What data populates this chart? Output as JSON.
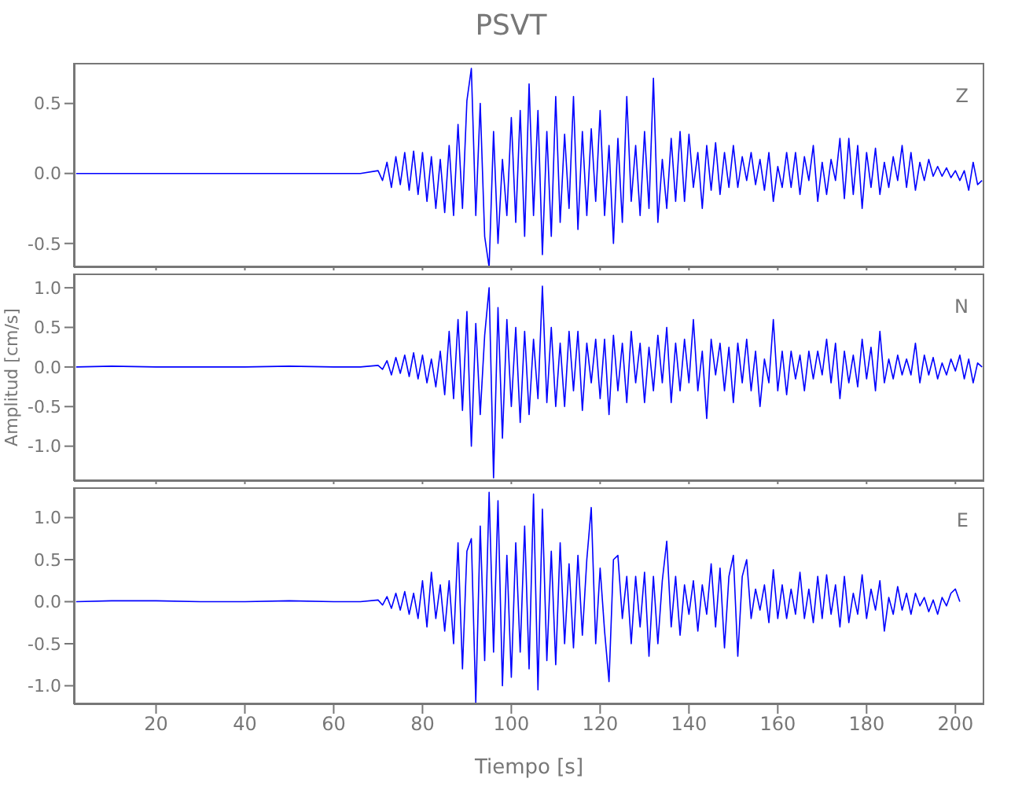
{
  "chart_data": [
    {
      "type": "line",
      "title": "PSVT",
      "annotations": [
        "Z"
      ],
      "tick_labels": "y",
      "xlim": [
        1.5,
        206.5
      ],
      "ylim": [
        -0.67,
        0.79
      ],
      "xticks": [
        20,
        40,
        60,
        80,
        100,
        120,
        140,
        160,
        180,
        200
      ],
      "yticks": [
        {
          "value": -0.5,
          "label": "-0.5"
        },
        {
          "value": 0,
          "label": "0.0"
        },
        {
          "value": 0.5,
          "label": "0.5"
        }
      ],
      "x": [
        2,
        10,
        20,
        30,
        40,
        50,
        60,
        66,
        70,
        71,
        72,
        73,
        74,
        75,
        76,
        77,
        78,
        79,
        80,
        81,
        82,
        83,
        84,
        85,
        86,
        87,
        88,
        89,
        90,
        91,
        92,
        93,
        94,
        95,
        96,
        97,
        98,
        99,
        100,
        101,
        102,
        103,
        104,
        105,
        106,
        107,
        108,
        109,
        110,
        111,
        112,
        113,
        114,
        115,
        116,
        117,
        118,
        119,
        120,
        121,
        122,
        123,
        124,
        125,
        126,
        127,
        128,
        129,
        130,
        131,
        132,
        133,
        134,
        135,
        136,
        137,
        138,
        139,
        140,
        141,
        142,
        143,
        144,
        145,
        146,
        147,
        148,
        149,
        150,
        151,
        152,
        153,
        154,
        155,
        156,
        157,
        158,
        159,
        160,
        161,
        162,
        163,
        164,
        165,
        166,
        167,
        168,
        169,
        170,
        171,
        172,
        173,
        174,
        175,
        176,
        177,
        178,
        179,
        180,
        181,
        182,
        183,
        184,
        185,
        186,
        187,
        188,
        189,
        190,
        191,
        192,
        193,
        194,
        195,
        196,
        197,
        198,
        199,
        200,
        201,
        202,
        203,
        204,
        205,
        206
      ],
      "series": [
        {
          "color": "#0000ff",
          "values": [
            0,
            0,
            0,
            0,
            0,
            0,
            0,
            0,
            0.02,
            -0.05,
            0.08,
            -0.1,
            0.12,
            -0.08,
            0.15,
            -0.12,
            0.16,
            -0.15,
            0.15,
            -0.2,
            0.12,
            -0.25,
            0.1,
            -0.28,
            0.2,
            -0.3,
            0.35,
            -0.25,
            0.52,
            0.75,
            -0.3,
            0.5,
            -0.45,
            -0.67,
            0.3,
            -0.5,
            0.1,
            -0.3,
            0.4,
            -0.35,
            0.45,
            -0.45,
            0.64,
            -0.3,
            0.45,
            -0.58,
            0.3,
            -0.45,
            0.55,
            -0.35,
            0.28,
            -0.25,
            0.55,
            -0.4,
            0.3,
            -0.3,
            0.32,
            -0.2,
            0.45,
            -0.3,
            0.2,
            -0.5,
            0.25,
            -0.35,
            0.55,
            -0.2,
            0.2,
            -0.3,
            0.3,
            -0.25,
            0.68,
            -0.35,
            0.1,
            -0.25,
            0.25,
            -0.2,
            0.3,
            -0.2,
            0.28,
            -0.1,
            0.15,
            -0.25,
            0.2,
            -0.12,
            0.22,
            -0.15,
            0.15,
            -0.1,
            0.2,
            -0.1,
            0.12,
            -0.05,
            0.15,
            -0.08,
            0.1,
            -0.12,
            0.15,
            -0.2,
            0.05,
            -0.1,
            0.15,
            -0.1,
            0.15,
            -0.15,
            0.12,
            -0.05,
            0.2,
            -0.2,
            0.08,
            -0.15,
            0.1,
            -0.05,
            0.25,
            -0.18,
            0.25,
            -0.15,
            0.2,
            -0.25,
            0.15,
            -0.1,
            0.18,
            -0.15,
            0.08,
            -0.1,
            0.12,
            -0.05,
            0.2,
            -0.1,
            0.15,
            -0.12,
            0.08,
            -0.05,
            0.1,
            -0.02,
            0.05,
            -0.02,
            0.04,
            -0.03,
            0.02,
            -0.05,
            0.02,
            -0.12,
            0.08,
            -0.08,
            -0.05
          ]
        }
      ]
    },
    {
      "type": "line",
      "ylabel": "Amplitud [cm/s]",
      "annotations": [
        "N"
      ],
      "tick_labels": "y",
      "xlim": [
        1.5,
        206.5
      ],
      "ylim": [
        -1.44,
        1.18
      ],
      "xticks": [
        20,
        40,
        60,
        80,
        100,
        120,
        140,
        160,
        180,
        200
      ],
      "yticks": [
        {
          "value": -1,
          "label": "-1.0"
        },
        {
          "value": -0.5,
          "label": "-0.5"
        },
        {
          "value": 0,
          "label": "0.0"
        },
        {
          "value": 0.5,
          "label": "0.5"
        },
        {
          "value": 1,
          "label": "1.0"
        }
      ],
      "x": [
        2,
        10,
        20,
        30,
        40,
        50,
        60,
        66,
        70,
        71,
        72,
        73,
        74,
        75,
        76,
        77,
        78,
        79,
        80,
        81,
        82,
        83,
        84,
        85,
        86,
        87,
        88,
        89,
        90,
        91,
        92,
        93,
        94,
        95,
        96,
        97,
        98,
        99,
        100,
        101,
        102,
        103,
        104,
        105,
        106,
        107,
        108,
        109,
        110,
        111,
        112,
        113,
        114,
        115,
        116,
        117,
        118,
        119,
        120,
        121,
        122,
        123,
        124,
        125,
        126,
        127,
        128,
        129,
        130,
        131,
        132,
        133,
        134,
        135,
        136,
        137,
        138,
        139,
        140,
        141,
        142,
        143,
        144,
        145,
        146,
        147,
        148,
        149,
        150,
        151,
        152,
        153,
        154,
        155,
        156,
        157,
        158,
        159,
        160,
        161,
        162,
        163,
        164,
        165,
        166,
        167,
        168,
        169,
        170,
        171,
        172,
        173,
        174,
        175,
        176,
        177,
        178,
        179,
        180,
        181,
        182,
        183,
        184,
        185,
        186,
        187,
        188,
        189,
        190,
        191,
        192,
        193,
        194,
        195,
        196,
        197,
        198,
        199,
        200,
        201,
        202,
        203,
        204,
        205,
        206
      ],
      "series": [
        {
          "color": "#0000ff",
          "values": [
            0,
            0.01,
            0,
            0,
            0,
            0.01,
            0,
            0,
            0.02,
            -0.03,
            0.08,
            -0.1,
            0.12,
            -0.08,
            0.15,
            -0.12,
            0.18,
            -0.15,
            0.15,
            -0.2,
            0.1,
            -0.25,
            0.2,
            -0.35,
            0.45,
            -0.4,
            0.6,
            -0.55,
            0.7,
            -1.0,
            0.55,
            -0.6,
            0.4,
            1.0,
            -1.4,
            0.75,
            -0.9,
            0.6,
            -0.5,
            0.5,
            -0.7,
            0.45,
            -0.6,
            0.35,
            -0.4,
            1.02,
            -0.45,
            0.5,
            -0.5,
            0.3,
            -0.5,
            0.45,
            -0.3,
            0.45,
            -0.55,
            0.3,
            -0.2,
            0.35,
            -0.4,
            0.35,
            -0.6,
            0.4,
            -0.3,
            0.3,
            -0.45,
            0.45,
            -0.2,
            0.3,
            -0.45,
            0.25,
            -0.3,
            0.4,
            -0.2,
            0.5,
            -0.45,
            0.3,
            -0.3,
            0.35,
            -0.2,
            0.6,
            -0.3,
            0.2,
            -0.65,
            0.35,
            -0.1,
            0.3,
            -0.3,
            0.25,
            -0.45,
            0.3,
            -0.2,
            0.35,
            -0.3,
            0.2,
            -0.5,
            0.1,
            -0.2,
            0.6,
            -0.3,
            0.2,
            -0.35,
            0.2,
            -0.15,
            0.15,
            -0.3,
            0.2,
            -0.15,
            0.2,
            -0.1,
            0.35,
            -0.2,
            0.3,
            -0.4,
            0.2,
            -0.2,
            0.15,
            -0.25,
            0.35,
            -0.15,
            0.25,
            -0.3,
            0.45,
            -0.2,
            0.1,
            -0.15,
            0.15,
            -0.1,
            0.1,
            -0.1,
            0.3,
            -0.2,
            0.15,
            -0.1,
            0.12,
            -0.15,
            0.05,
            -0.1,
            0.1,
            -0.05,
            0.15,
            -0.15,
            0.1,
            -0.2,
            0.05,
            0
          ]
        }
      ]
    },
    {
      "type": "line",
      "xlabel": "Tiempo [s]",
      "annotations": [
        "E"
      ],
      "xlim": [
        1.5,
        206.5
      ],
      "ylim": [
        -1.22,
        1.36
      ],
      "xticks": [
        20,
        40,
        60,
        80,
        100,
        120,
        140,
        160,
        180,
        200
      ],
      "yticks": [
        {
          "value": -1,
          "label": "-1.0"
        },
        {
          "value": -0.5,
          "label": "-0.5"
        },
        {
          "value": 0,
          "label": "0.0"
        },
        {
          "value": 0.5,
          "label": "0.5"
        },
        {
          "value": 1,
          "label": "1.0"
        }
      ],
      "x": [
        2,
        10,
        20,
        30,
        40,
        50,
        60,
        66,
        70,
        71,
        72,
        73,
        74,
        75,
        76,
        77,
        78,
        79,
        80,
        81,
        82,
        83,
        84,
        85,
        86,
        87,
        88,
        89,
        90,
        91,
        92,
        93,
        94,
        95,
        96,
        97,
        98,
        99,
        100,
        101,
        102,
        103,
        104,
        105,
        106,
        107,
        108,
        109,
        110,
        111,
        112,
        113,
        114,
        115,
        116,
        117,
        118,
        119,
        120,
        121,
        122,
        123,
        124,
        125,
        126,
        127,
        128,
        129,
        130,
        131,
        132,
        133,
        134,
        135,
        136,
        137,
        138,
        139,
        140,
        141,
        142,
        143,
        144,
        145,
        146,
        147,
        148,
        149,
        150,
        151,
        152,
        153,
        154,
        155,
        156,
        157,
        158,
        159,
        160,
        161,
        162,
        163,
        164,
        165,
        166,
        167,
        168,
        169,
        170,
        171,
        172,
        173,
        174,
        175,
        176,
        177,
        178,
        179,
        180,
        181,
        182,
        183,
        184,
        185,
        186,
        187,
        188,
        189,
        190,
        191,
        192,
        193,
        194,
        195,
        196,
        197,
        198,
        199,
        200,
        201
      ],
      "series": [
        {
          "color": "#0000ff",
          "values": [
            0,
            0.01,
            0.01,
            0,
            0,
            0.01,
            0,
            0,
            0.02,
            -0.04,
            0.06,
            -0.08,
            0.1,
            -0.1,
            0.12,
            -0.15,
            0.1,
            -0.2,
            0.25,
            -0.3,
            0.35,
            -0.2,
            0.2,
            -0.35,
            0.25,
            -0.5,
            0.7,
            -0.8,
            0.6,
            0.75,
            -1.2,
            0.9,
            -0.7,
            1.3,
            -0.6,
            1.2,
            -1.0,
            0.55,
            -0.9,
            0.7,
            -0.6,
            0.9,
            -0.8,
            1.28,
            -1.05,
            1.1,
            -0.7,
            0.6,
            -0.75,
            0.7,
            -0.5,
            0.45,
            -0.55,
            0.55,
            -0.4,
            0.5,
            1.12,
            -0.5,
            0.4,
            -0.35,
            -0.95,
            0.5,
            0.55,
            -0.2,
            0.3,
            -0.5,
            0.3,
            -0.3,
            0.35,
            -0.65,
            0.3,
            -0.5,
            0.25,
            0.72,
            -0.3,
            0.3,
            -0.4,
            0.2,
            -0.15,
            0.25,
            -0.35,
            0.2,
            -0.15,
            0.45,
            -0.3,
            0.4,
            -0.55,
            0.3,
            0.55,
            -0.65,
            0.3,
            0.5,
            -0.2,
            0.15,
            -0.1,
            0.2,
            -0.25,
            0.38,
            -0.2,
            0.2,
            -0.2,
            0.15,
            -0.15,
            0.35,
            -0.2,
            0.15,
            -0.25,
            0.3,
            -0.2,
            0.32,
            -0.15,
            0.2,
            -0.3,
            0.3,
            -0.25,
            0.1,
            -0.15,
            0.32,
            -0.2,
            0.15,
            -0.1,
            0.25,
            -0.35,
            0.05,
            -0.15,
            0.18,
            -0.1,
            0.1,
            -0.15,
            0.1,
            -0.05,
            0.05,
            -0.12,
            0.02,
            -0.15,
            0.05,
            -0.05,
            0.1,
            0.15,
            0
          ]
        }
      ]
    }
  ]
}
